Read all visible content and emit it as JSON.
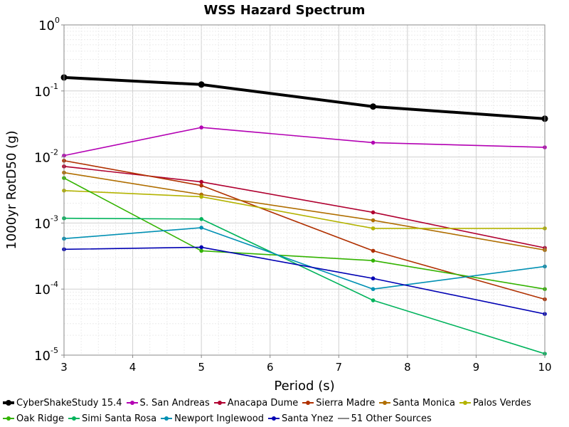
{
  "chart_data": {
    "type": "line",
    "title": "WSS Hazard Spectrum",
    "xlabel": "Period (s)",
    "ylabel": "1000yr RotD50 (g)",
    "xlim": [
      3,
      10
    ],
    "ylim": [
      1e-05,
      1
    ],
    "yscale": "log",
    "grid": true,
    "legend_position": "bottom",
    "x_ticks": [
      "3",
      "4",
      "5",
      "6",
      "7",
      "8",
      "9",
      "10"
    ],
    "y_ticks": [
      {
        "base": "10",
        "exp": "0"
      },
      {
        "base": "10",
        "exp": "-1"
      },
      {
        "base": "10",
        "exp": "-2"
      },
      {
        "base": "10",
        "exp": "-3"
      },
      {
        "base": "10",
        "exp": "-4"
      },
      {
        "base": "10",
        "exp": "-5"
      }
    ],
    "x": [
      3,
      5,
      7.5,
      10
    ],
    "series": [
      {
        "name": "CyberShakeStudy 15.4",
        "color": "#000000",
        "bold": true,
        "values": [
          0.16,
          0.125,
          0.058,
          0.038
        ]
      },
      {
        "name": "S. San Andreas",
        "color": "#b300b3",
        "bold": false,
        "values": [
          0.0105,
          0.028,
          0.0165,
          0.014
        ]
      },
      {
        "name": "Anacapa Dume",
        "color": "#b00030",
        "bold": false,
        "values": [
          0.0072,
          0.0042,
          0.00145,
          0.00042
        ]
      },
      {
        "name": "Sierra Madre",
        "color": "#b03000",
        "bold": false,
        "values": [
          0.0088,
          0.0037,
          0.00038,
          7e-05
        ]
      },
      {
        "name": "Santa Monica",
        "color": "#b06e00",
        "bold": false,
        "values": [
          0.0058,
          0.0027,
          0.0011,
          0.00039
        ]
      },
      {
        "name": "Palos Verdes",
        "color": "#b3b300",
        "bold": false,
        "values": [
          0.0031,
          0.0025,
          0.00083,
          0.00083
        ]
      },
      {
        "name": "Oak Ridge",
        "color": "#33b300",
        "bold": false,
        "values": [
          0.0048,
          0.00038,
          0.00027,
          0.0001
        ]
      },
      {
        "name": "Simi Santa Rosa",
        "color": "#00b35c",
        "bold": false,
        "values": [
          0.00118,
          0.00115,
          6.75e-05,
          1.05e-05
        ]
      },
      {
        "name": "Newport Inglewood",
        "color": "#0090b3",
        "bold": false,
        "values": [
          0.00058,
          0.00085,
          0.0001,
          0.00022
        ]
      },
      {
        "name": "Santa Ynez",
        "color": "#0000b3",
        "bold": false,
        "values": [
          0.0004,
          0.00043,
          0.000145,
          4.2e-05
        ]
      }
    ],
    "legend_extra": {
      "name": "51 Other Sources",
      "color": "#888888"
    }
  }
}
